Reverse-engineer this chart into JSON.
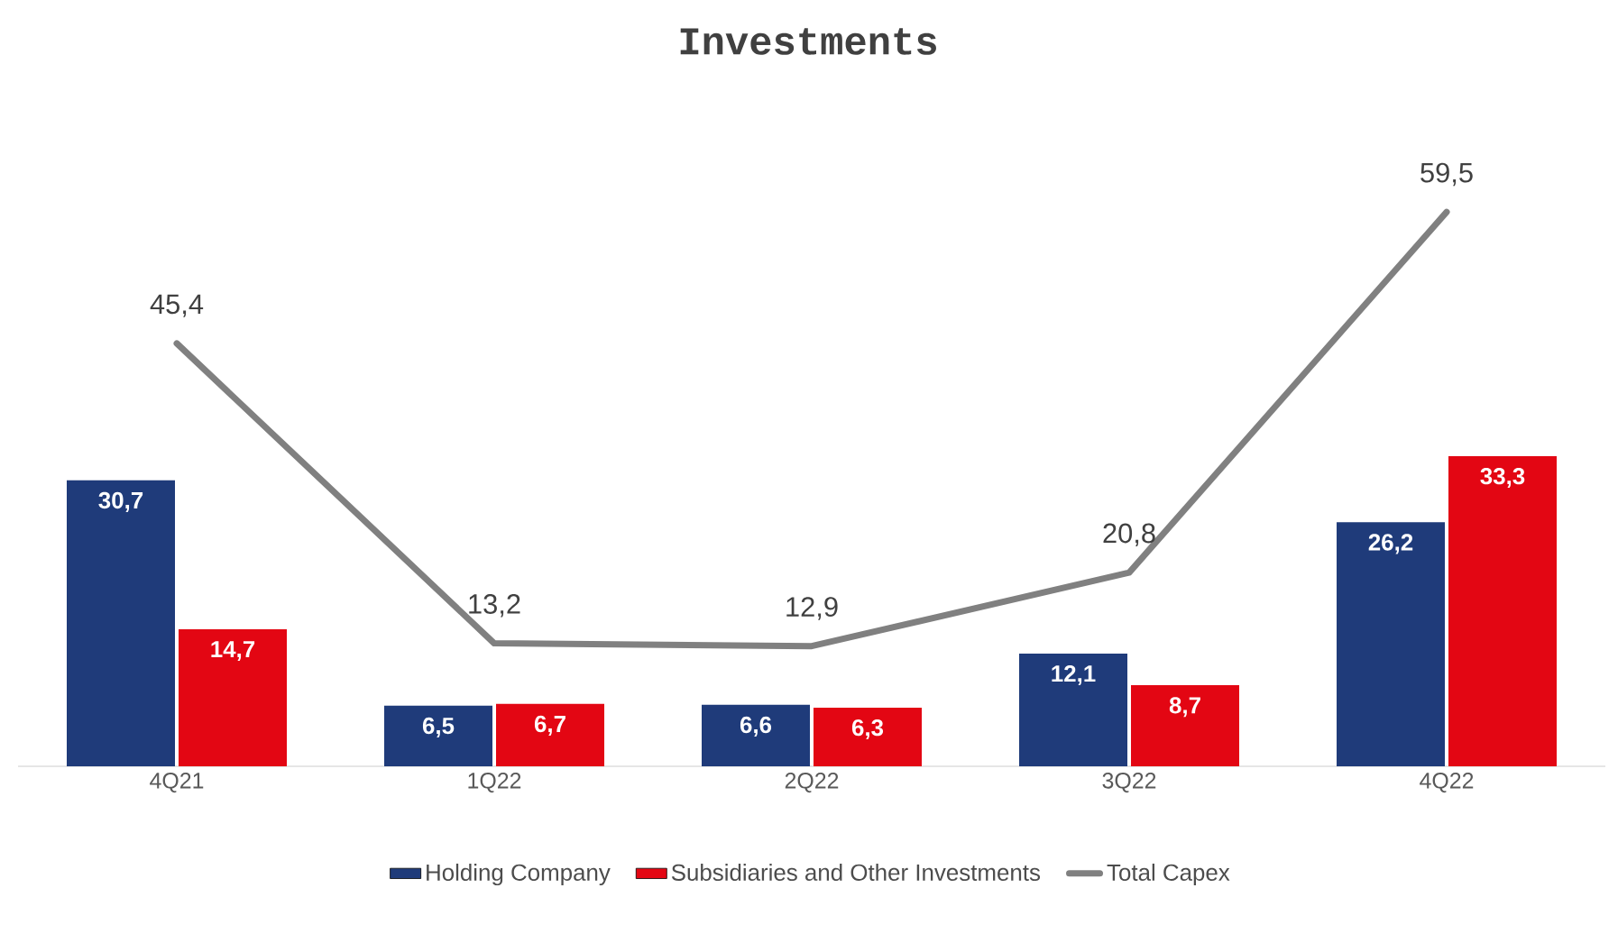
{
  "chart_data": {
    "type": "bar",
    "title": "Investments",
    "categories": [
      "4Q21",
      "1Q22",
      "2Q22",
      "3Q22",
      "4Q22"
    ],
    "series": [
      {
        "name": "Holding Company",
        "color": "#1f3b7a",
        "values": [
          30.7,
          6.5,
          6.6,
          12.1,
          26.2
        ],
        "value_labels": [
          "30,7",
          "6,5",
          "6,6",
          "12,1",
          "26,2"
        ]
      },
      {
        "name": "Subsidiaries and Other Investments",
        "color": "#e30613",
        "values": [
          14.7,
          6.7,
          6.3,
          8.7,
          33.3
        ],
        "value_labels": [
          "14,7",
          "6,7",
          "6,3",
          "8,7",
          "33,3"
        ]
      },
      {
        "name": "Total Capex",
        "type": "line",
        "color": "#808080",
        "values": [
          45.4,
          13.2,
          12.9,
          20.8,
          59.5
        ],
        "value_labels": [
          "45,4",
          "13,2",
          "12,9",
          "20,8",
          "59,5"
        ]
      }
    ],
    "legend": "bottom",
    "marker": "none",
    "grid": false
  }
}
